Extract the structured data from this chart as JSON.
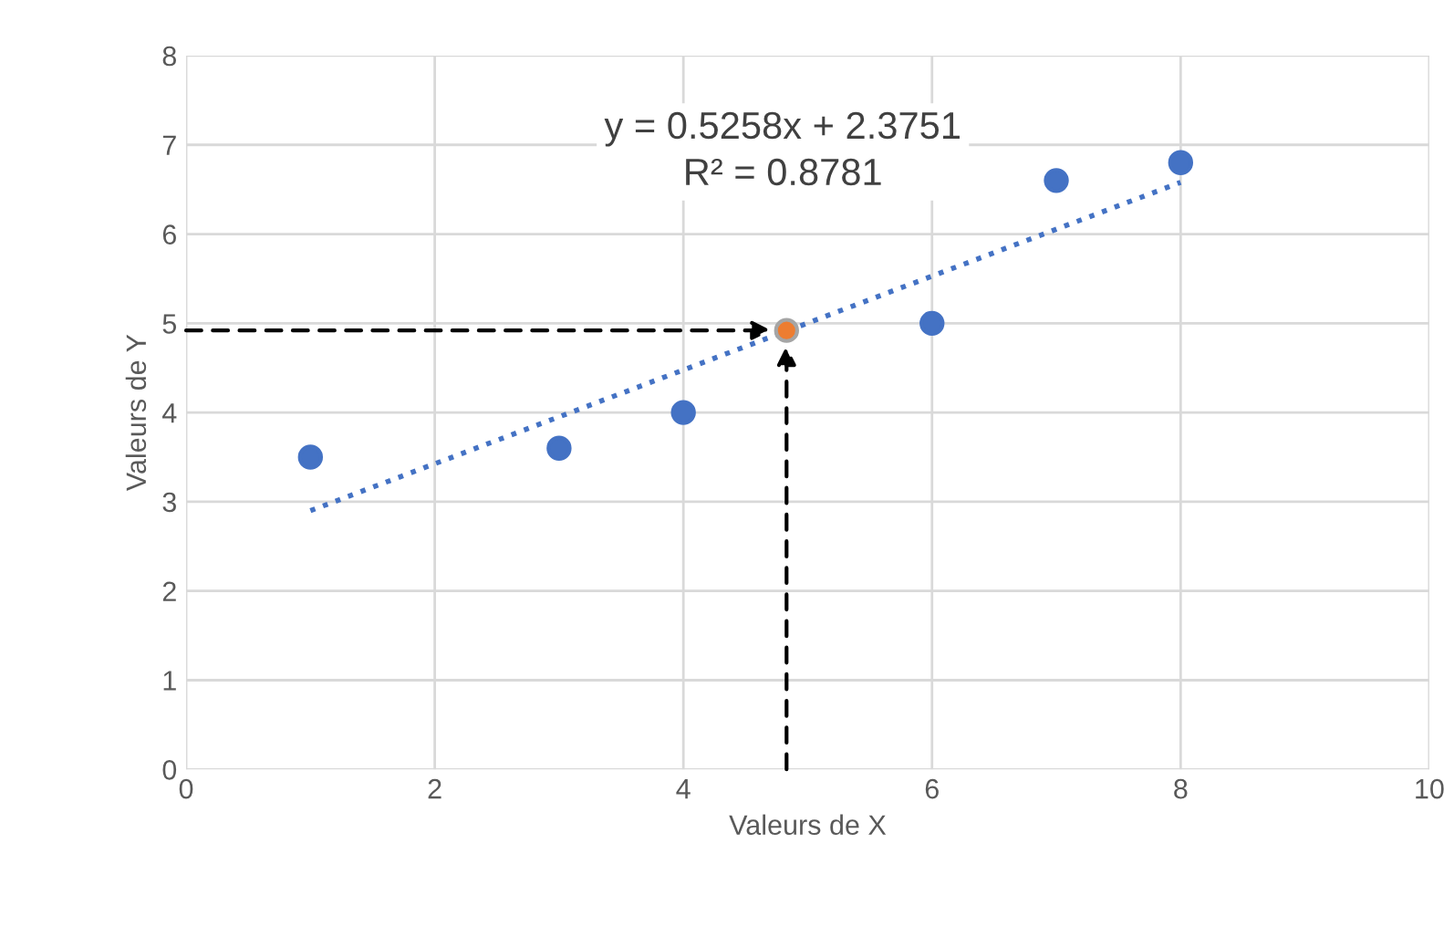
{
  "chart_data": {
    "type": "scatter",
    "xlabel": "Valeurs de X",
    "ylabel": "Valeurs de Y",
    "xlim": [
      0,
      10
    ],
    "xticks": [
      0,
      2,
      4,
      6,
      8,
      10
    ],
    "ylim": [
      0,
      8
    ],
    "yticks": [
      0,
      1,
      2,
      3,
      4,
      5,
      6,
      7,
      8
    ],
    "grid": true,
    "marker": "circle",
    "annotations": [
      "y = 0.5258x + 2.3751\nR² = 0.8781"
    ],
    "series": [
      {
        "color": "#4472c4",
        "x": [
          1,
          3,
          4,
          6,
          7,
          8
        ],
        "values": [
          3.5,
          3.6,
          4.0,
          5.0,
          6.6,
          6.8
        ]
      },
      {
        "type": "line",
        "color": "#4472c4",
        "line_style": "dotted",
        "marker": "none",
        "x": [
          1,
          8
        ],
        "values": [
          2.9,
          6.58
        ]
      },
      {
        "color": "#ed7d31",
        "x": [
          4.83
        ],
        "values": [
          4.92
        ]
      }
    ]
  }
}
